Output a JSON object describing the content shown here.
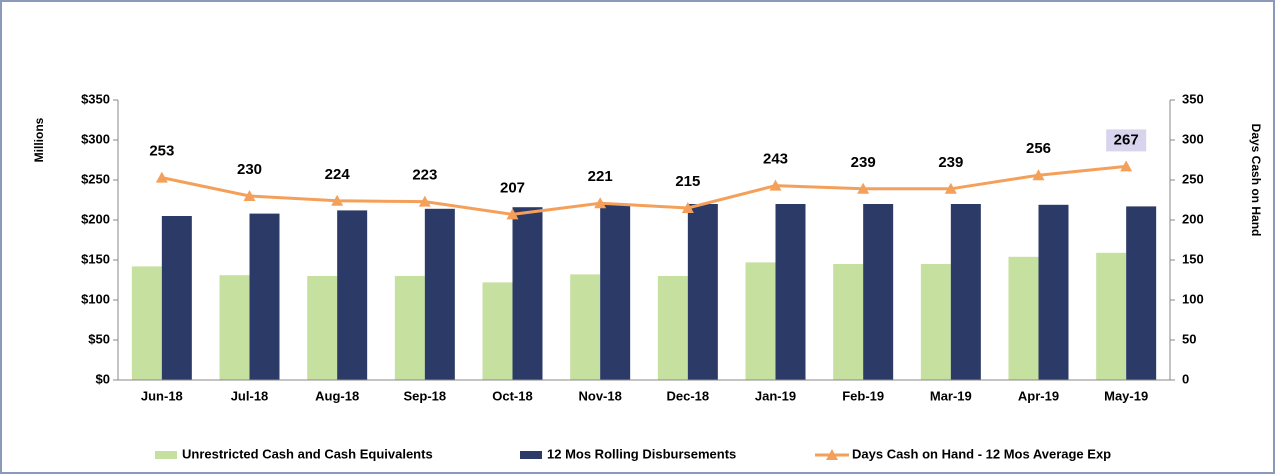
{
  "chart_data": {
    "type": "bar-line",
    "categories": [
      "Jun-18",
      "Jul-18",
      "Aug-18",
      "Sep-18",
      "Oct-18",
      "Nov-18",
      "Dec-18",
      "Jan-19",
      "Feb-19",
      "Mar-19",
      "Apr-19",
      "May-19"
    ],
    "y_label": "Millions",
    "y2_label": "Days Cash on Hand",
    "ylim": [
      0,
      350
    ],
    "yticks": [
      {
        "value": 0,
        "label": "$0"
      },
      {
        "value": 50,
        "label": "$50"
      },
      {
        "value": 100,
        "label": "$100"
      },
      {
        "value": 150,
        "label": "$150"
      },
      {
        "value": 200,
        "label": "$200"
      },
      {
        "value": 250,
        "label": "$250"
      },
      {
        "value": 300,
        "label": "$300"
      },
      {
        "value": 350,
        "label": "$350"
      }
    ],
    "y2lim": [
      0,
      350
    ],
    "y2ticks": [
      0,
      50,
      100,
      150,
      200,
      250,
      300,
      350
    ],
    "series": [
      {
        "name": "Unrestricted Cash and Cash Equivalents",
        "type": "bar",
        "color": "#c6e0a0",
        "values": [
          142,
          131,
          130,
          130,
          122,
          132,
          130,
          147,
          145,
          145,
          154,
          159
        ]
      },
      {
        "name": "12 Mos Rolling Disbursements",
        "type": "bar",
        "color": "#2b3a67",
        "values": [
          205,
          208,
          212,
          214,
          216,
          219,
          220,
          220,
          220,
          220,
          219,
          217
        ]
      },
      {
        "name": "Days Cash on Hand - 12 Mos Average Exp",
        "type": "line",
        "color": "#f5a05a",
        "axis": "y2",
        "values": [
          253,
          230,
          224,
          223,
          207,
          221,
          215,
          243,
          239,
          239,
          256,
          267
        ]
      }
    ]
  }
}
